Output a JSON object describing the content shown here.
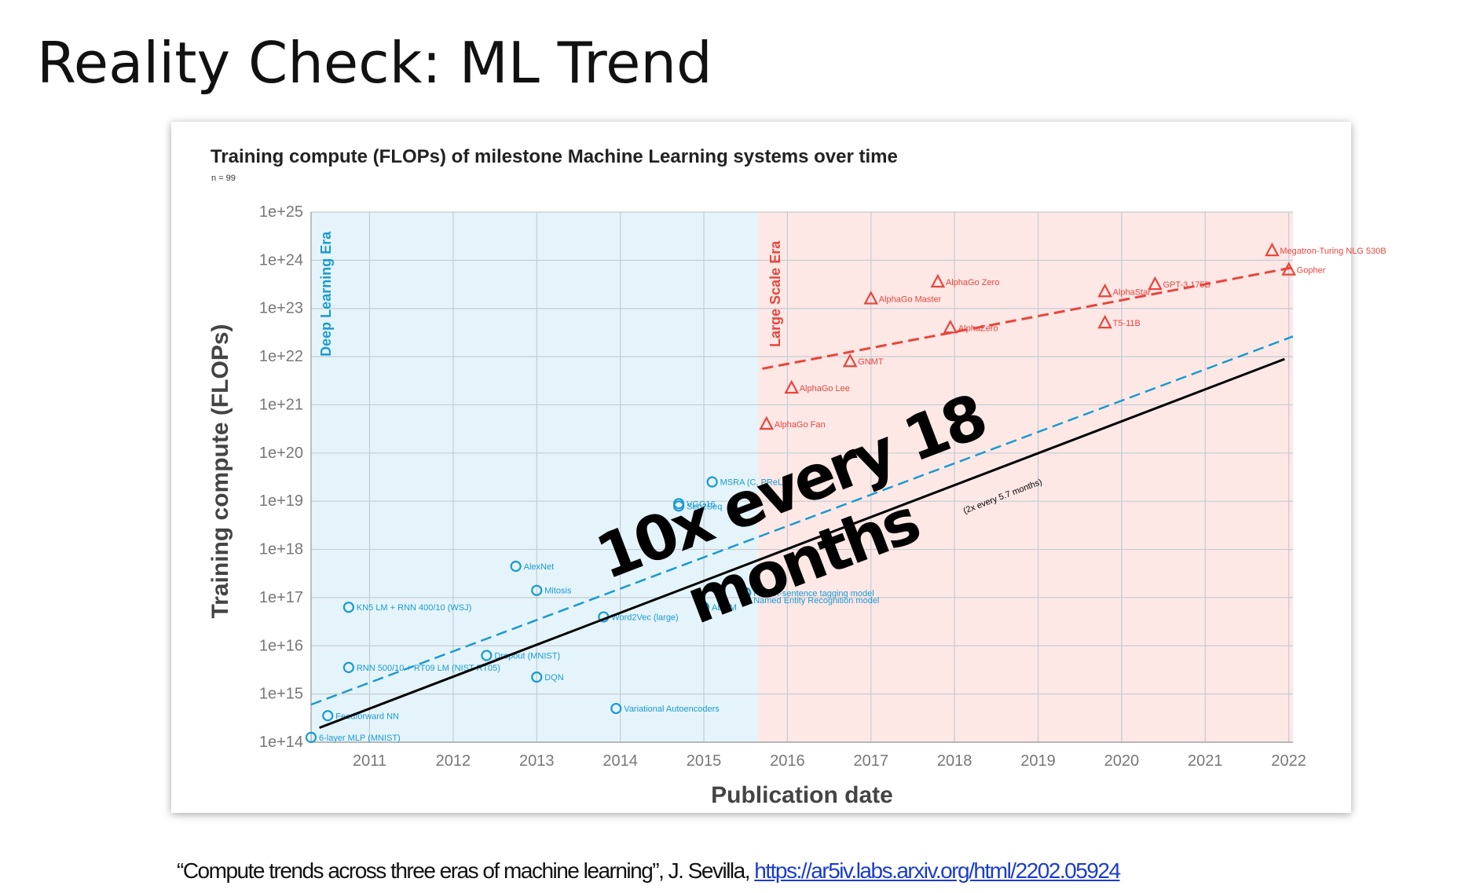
{
  "slide": {
    "title": "Reality Check: ML Trend",
    "citation_text": "“Compute trends across three eras of machine learning”, J. Sevilla, ",
    "citation_link": "https://ar5iv.labs.arxiv.org/html/2202.05924"
  },
  "colors": {
    "deep": "#1a9ad1",
    "large": "#e8453c",
    "deep_bg": "#e5f4fb",
    "large_bg": "#fde8e6",
    "grid": "#c5cbd3"
  },
  "chart_data": {
    "type": "scatter",
    "title": "Training compute (FLOPs) of milestone Machine Learning systems over time",
    "subtitle": "n = 99",
    "xlabel": "Publication date",
    "ylabel": "Training compute (FLOPs)",
    "y_scale": "log",
    "xlim": [
      2010.3,
      2022.05
    ],
    "ylim": [
      14,
      25
    ],
    "x_ticks": [
      "2011",
      "2012",
      "2013",
      "2014",
      "2015",
      "2016",
      "2017",
      "2018",
      "2019",
      "2020",
      "2021",
      "2022"
    ],
    "y_ticks": [
      "1e+14",
      "1e+15",
      "1e+16",
      "1e+17",
      "1e+18",
      "1e+19",
      "1e+20",
      "1e+21",
      "1e+22",
      "1e+23",
      "1e+24",
      "1e+25"
    ],
    "eras": [
      {
        "label": "Deep Learning Era",
        "from": 2010.3,
        "to": 2015.65
      },
      {
        "label": "Large Scale Era",
        "from": 2015.65,
        "to": 2022.05
      }
    ],
    "trend_lines": [
      {
        "era": "deep",
        "x": [
          2010.3,
          2022.05
        ],
        "y": [
          14.78,
          22.42
        ]
      },
      {
        "era": "large",
        "x": [
          2015.7,
          2022.05
        ],
        "y": [
          21.75,
          23.85
        ]
      }
    ],
    "annotation": {
      "line1": "10x every 18",
      "line2": "months",
      "note": "(2x every 5.7 months)",
      "x": [
        2010.4,
        2021.95
      ],
      "y": [
        14.3,
        21.95
      ]
    },
    "series": [
      {
        "name": "Deep Learning Era",
        "marker": "circle",
        "points": [
          {
            "label": "6-layer MLP (MNIST)",
            "x": 2010.3,
            "y": 14.1
          },
          {
            "label": "Feedforward NN",
            "x": 2010.5,
            "y": 14.55
          },
          {
            "label": "RNN 500/10 + RT09 LM (NIST RT05)",
            "x": 2010.75,
            "y": 15.55
          },
          {
            "label": "KN5 LM + RNN 400/10 (WSJ)",
            "x": 2010.75,
            "y": 16.8
          },
          {
            "label": "Dropout (MNIST)",
            "x": 2012.4,
            "y": 15.8
          },
          {
            "label": "DQN",
            "x": 2013.0,
            "y": 15.35
          },
          {
            "label": "AlexNet",
            "x": 2012.75,
            "y": 17.65
          },
          {
            "label": "Mitosis",
            "x": 2013.0,
            "y": 17.15
          },
          {
            "label": "Word2Vec (large)",
            "x": 2013.8,
            "y": 16.6
          },
          {
            "label": "Variational Autoencoders",
            "x": 2013.95,
            "y": 14.7
          },
          {
            "label": "VGG16",
            "x": 2014.7,
            "y": 18.95
          },
          {
            "label": "Seq2Seq",
            "x": 2014.7,
            "y": 18.9
          },
          {
            "label": "MSRA (C, PReLU)",
            "x": 2015.1,
            "y": 19.4
          },
          {
            "label": "ADAM",
            "x": 2015.0,
            "y": 16.8
          },
          {
            "label": "Part-of-sentence tagging model",
            "x": 2015.5,
            "y": 17.1
          },
          {
            "label": "Named Entity Recognition model",
            "x": 2015.5,
            "y": 16.95
          }
        ]
      },
      {
        "name": "Large Scale Era",
        "marker": "triangle",
        "points": [
          {
            "label": "AlphaGo Fan",
            "x": 2015.75,
            "y": 20.6
          },
          {
            "label": "AlphaGo Lee",
            "x": 2016.05,
            "y": 21.35
          },
          {
            "label": "GNMT",
            "x": 2016.75,
            "y": 21.9
          },
          {
            "label": "AlphaGo Master",
            "x": 2017.0,
            "y": 23.2
          },
          {
            "label": "AlphaGo Zero",
            "x": 2017.8,
            "y": 23.55
          },
          {
            "label": "AlphaZero",
            "x": 2017.95,
            "y": 22.6
          },
          {
            "label": "Megatron-Turing NLG 530B",
            "x": 2021.8,
            "y": 24.2
          },
          {
            "label": "GPT-3 175B",
            "x": 2020.4,
            "y": 23.5
          },
          {
            "label": "AlphaStar",
            "x": 2019.8,
            "y": 23.35
          },
          {
            "label": "T5-11B",
            "x": 2019.8,
            "y": 22.7
          },
          {
            "label": "Gopher",
            "x": 2022.0,
            "y": 23.8
          }
        ]
      }
    ]
  }
}
